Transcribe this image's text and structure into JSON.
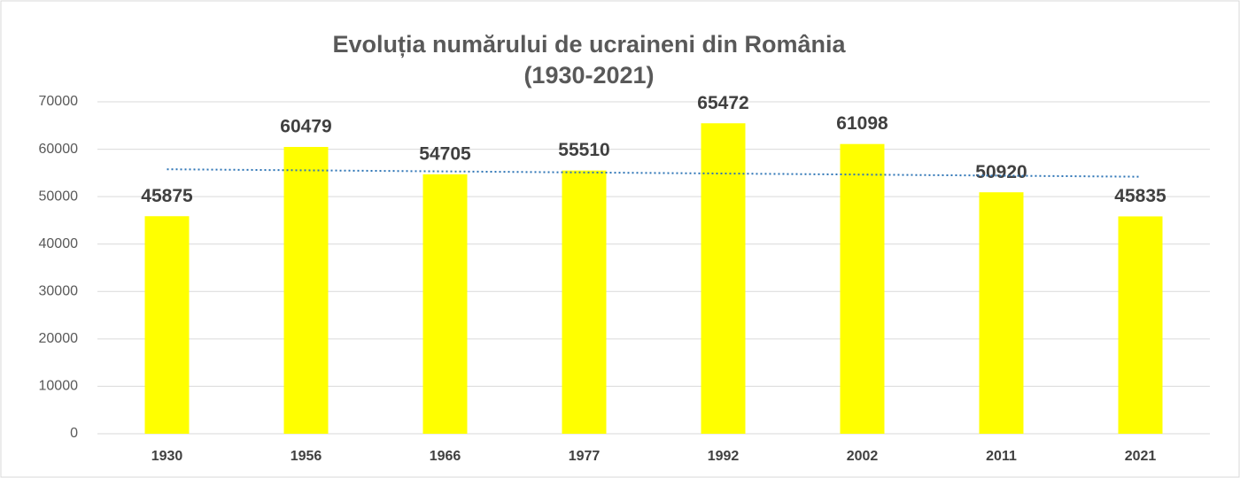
{
  "chart_data": {
    "type": "bar",
    "title": "Evoluția numărului de ucraineni din România",
    "subtitle": "(1930-2021)",
    "categories": [
      "1930",
      "1956",
      "1966",
      "1977",
      "1992",
      "2002",
      "2011",
      "2021"
    ],
    "values": [
      45875,
      60479,
      54705,
      55510,
      65472,
      61098,
      50920,
      45835
    ],
    "color": "#ffff00",
    "trendline": true,
    "trend_color": "#2e75b6",
    "ylim": [
      0,
      70000
    ],
    "yticks": [
      0,
      10000,
      20000,
      30000,
      40000,
      50000,
      60000,
      70000
    ],
    "grid": true
  }
}
